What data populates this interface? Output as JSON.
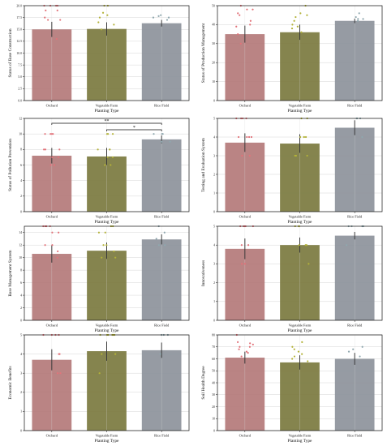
{
  "chart_data": [
    {
      "type": "bar",
      "categories": [
        "Orchard",
        "Vegetable Farm",
        "Rice Field"
      ],
      "values": [
        15.0,
        15.1,
        16.3
      ],
      "errors": [
        1.6,
        1.4,
        0.7
      ],
      "points": [
        [
          20,
          20,
          20,
          20,
          19,
          19,
          17.5,
          17,
          17,
          13
        ],
        [
          20,
          20,
          18.5,
          18,
          17.5,
          16.5,
          16,
          15
        ],
        [
          18,
          17.8,
          17.5,
          17.5,
          17
        ]
      ],
      "xlabel": "Planting Type",
      "ylabel": "Status of Base Construction",
      "ylim": [
        0,
        20
      ],
      "yticks": [
        0.0,
        2.5,
        5.0,
        7.5,
        10.0,
        12.5,
        15.0,
        17.5,
        20.0
      ],
      "tick_decimals": 1,
      "grid": true,
      "significance": []
    },
    {
      "type": "bar",
      "categories": [
        "Orchard",
        "Vegetable Farm",
        "Rice Field"
      ],
      "values": [
        35,
        36,
        42
      ],
      "errors": [
        4.5,
        4.0,
        1.2
      ],
      "points": [
        [
          50,
          48,
          48,
          46,
          45,
          42,
          40,
          39,
          35,
          30
        ],
        [
          50,
          46,
          45,
          44,
          42,
          40,
          39,
          38,
          36
        ],
        [
          46,
          44,
          43,
          43,
          42
        ]
      ],
      "xlabel": "Planting Type",
      "ylabel": "Status of Production Management",
      "ylim": [
        0,
        50
      ],
      "yticks": [
        0,
        10,
        20,
        30,
        40,
        50
      ],
      "tick_decimals": 0,
      "grid": true,
      "significance": []
    },
    {
      "type": "bar",
      "categories": [
        "Orchard",
        "Vegetable Farm",
        "Rice Field"
      ],
      "values": [
        7.2,
        7.1,
        9.3
      ],
      "errors": [
        1.0,
        1.1,
        0.5
      ],
      "points": [
        [
          10,
          10,
          10,
          10,
          8,
          8,
          8,
          7,
          7,
          6,
          6
        ],
        [
          10,
          10,
          10,
          8,
          8,
          8,
          7,
          7,
          6,
          6
        ],
        [
          10,
          10,
          10,
          9,
          9
        ]
      ],
      "xlabel": "Planting Type",
      "ylabel": "Status of Pollution Prevention",
      "ylim": [
        0,
        12
      ],
      "yticks": [
        0,
        2,
        4,
        6,
        8,
        10,
        12
      ],
      "tick_decimals": 0,
      "grid": true,
      "significance": [
        {
          "from": 0,
          "to": 2,
          "label": "**"
        },
        {
          "from": 1,
          "to": 2,
          "label": "*"
        }
      ]
    },
    {
      "type": "bar",
      "categories": [
        "Orchard",
        "Vegetable Farm",
        "Rice Field"
      ],
      "values": [
        3.7,
        3.65,
        4.5
      ],
      "errors": [
        0.5,
        0.5,
        0.4
      ],
      "points": [
        [
          5,
          5,
          5,
          5,
          4,
          4,
          4,
          4,
          3,
          3
        ],
        [
          5,
          5,
          4,
          4,
          4,
          4,
          3,
          3,
          3
        ],
        [
          5,
          5,
          5,
          5,
          4
        ]
      ],
      "xlabel": "Planting Type",
      "ylabel": "Testing and Evaluation System",
      "ylim": [
        0,
        5
      ],
      "yticks": [
        0,
        1,
        2,
        3,
        4,
        5
      ],
      "tick_decimals": 0,
      "grid": true,
      "significance": []
    },
    {
      "type": "bar",
      "categories": [
        "Orchard",
        "Vegetable Farm",
        "Rice Field"
      ],
      "values": [
        10.6,
        11.1,
        12.9
      ],
      "errors": [
        1.4,
        1.3,
        0.8
      ],
      "points": [
        [
          15,
          15,
          15,
          15,
          14,
          14,
          12,
          12,
          11,
          10
        ],
        [
          15,
          15,
          14,
          14,
          12,
          12,
          11,
          10,
          10
        ],
        [
          15,
          14,
          13,
          12,
          12
        ]
      ],
      "xlabel": "Planting Type",
      "ylabel": "Base Management System",
      "ylim": [
        0,
        15
      ],
      "yticks": [
        0,
        2,
        4,
        6,
        8,
        10,
        12,
        14
      ],
      "tick_decimals": 0,
      "grid": true,
      "significance": []
    },
    {
      "type": "bar",
      "categories": [
        "Orchard",
        "Vegetable Farm",
        "Rice Field"
      ],
      "values": [
        3.8,
        4.0,
        4.5
      ],
      "errors": [
        0.55,
        0.4,
        0.2
      ],
      "points": [
        [
          5,
          5,
          5,
          5,
          5,
          4,
          4,
          3,
          3
        ],
        [
          5,
          5,
          5,
          5,
          4,
          4,
          4,
          3
        ],
        [
          5,
          5,
          5,
          5,
          4
        ]
      ],
      "xlabel": "Planting Type",
      "ylabel": "Innovativeness",
      "ylim": [
        0,
        5
      ],
      "yticks": [
        0,
        1,
        2,
        3,
        4,
        5
      ],
      "tick_decimals": 0,
      "grid": true,
      "significance": []
    },
    {
      "type": "bar",
      "categories": [
        "Orchard",
        "Vegetable Farm",
        "Rice Field"
      ],
      "values": [
        3.7,
        4.15,
        4.2
      ],
      "errors": [
        0.55,
        0.5,
        0.4
      ],
      "points": [
        [
          5,
          5,
          5,
          5,
          4,
          4,
          3,
          3
        ],
        [
          5,
          5,
          5,
          5,
          5,
          5,
          4,
          4,
          3
        ],
        [
          5,
          5,
          5,
          4
        ]
      ],
      "xlabel": "Planting Type",
      "ylabel": "Economic Benefits",
      "ylim": [
        0,
        5
      ],
      "yticks": [
        0,
        1,
        2,
        3,
        4,
        5
      ],
      "tick_decimals": 0,
      "grid": true,
      "significance": []
    },
    {
      "type": "bar",
      "categories": [
        "Orchard",
        "Vegetable Farm",
        "Rice Field"
      ],
      "values": [
        61,
        57,
        60
      ],
      "errors": [
        5.0,
        6.0,
        5.0
      ],
      "points": [
        [
          80,
          74,
          73,
          72,
          70,
          70,
          68,
          66,
          65,
          62
        ],
        [
          74,
          70,
          68,
          66,
          64,
          62,
          60,
          58
        ],
        [
          70,
          68,
          66,
          62
        ]
      ],
      "xlabel": "Planting Type",
      "ylabel": "Soil Health Degree",
      "ylim": [
        0,
        80
      ],
      "yticks": [
        0,
        10,
        20,
        30,
        40,
        50,
        60,
        70,
        80
      ],
      "tick_decimals": 0,
      "grid": true,
      "significance": []
    }
  ],
  "colors": {
    "bars": [
      "#b47a7a",
      "#7b7a3f",
      "#8d939b"
    ],
    "points": [
      "#e2737a",
      "#b3b239",
      "#8fa7ae"
    ],
    "errorbar": "#3a3a3a",
    "grid": "#d6d6d6",
    "axis": "#111111"
  }
}
